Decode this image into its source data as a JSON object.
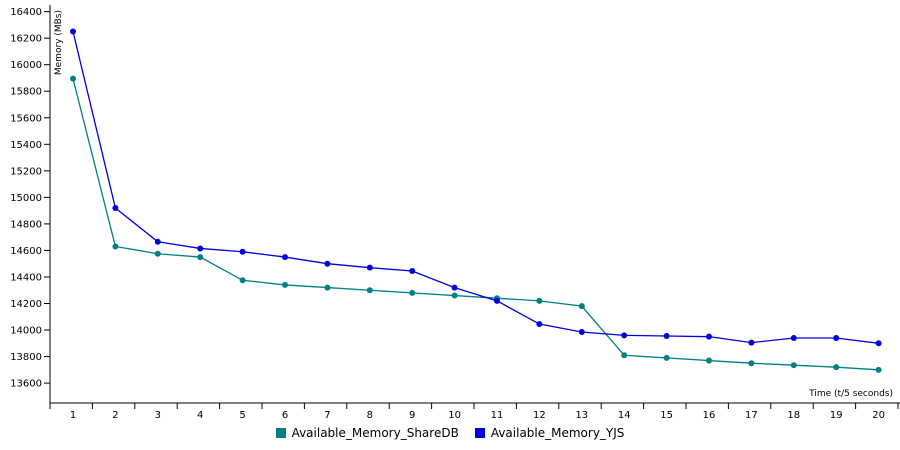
{
  "chart_data": {
    "type": "line",
    "title": "",
    "xlabel": "Time (t/5 seconds)",
    "ylabel": "Memory (MBs)",
    "x": [
      1,
      2,
      3,
      4,
      5,
      6,
      7,
      8,
      9,
      10,
      11,
      12,
      13,
      14,
      15,
      16,
      17,
      18,
      19,
      20
    ],
    "ylim": [
      13450,
      16450
    ],
    "yticks": [
      13600,
      13800,
      14000,
      14200,
      14400,
      14600,
      14800,
      15000,
      15200,
      15400,
      15600,
      15800,
      16000,
      16200,
      16400
    ],
    "grid": false,
    "legend_position": "bottom-center",
    "series": [
      {
        "name": "Available_Memory_ShareDB",
        "color": "#008080",
        "values": [
          15895,
          14630,
          14575,
          14550,
          14375,
          14340,
          14320,
          14300,
          14280,
          14260,
          14240,
          14220,
          14180,
          13810,
          13790,
          13770,
          13750,
          13735,
          13720,
          13700
        ]
      },
      {
        "name": "Available_Memory_YJS",
        "color": "#0000e0",
        "values": [
          16250,
          14920,
          14665,
          14615,
          14590,
          14550,
          14500,
          14470,
          14445,
          14320,
          14220,
          14045,
          13985,
          13960,
          13955,
          13950,
          13905,
          13940,
          13940,
          13900
        ]
      }
    ]
  }
}
